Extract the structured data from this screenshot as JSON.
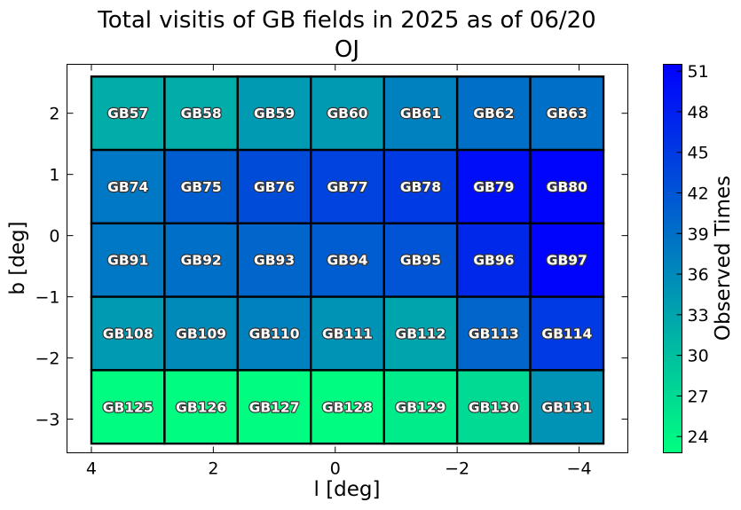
{
  "chart_data": {
    "type": "heatmap",
    "title": [
      "Total visitis of GB fields in 2025 as of 06/20",
      "OJ"
    ],
    "xlabel": "l [deg]",
    "ylabel": "b [deg]",
    "colorbar_label": "Observed Times",
    "x_ticks": [
      4,
      2,
      0,
      -2,
      -4
    ],
    "x_tick_labels": [
      "4",
      "2",
      "0",
      "−2",
      "−4"
    ],
    "y_ticks": [
      2,
      1,
      0,
      -1,
      -2,
      -3
    ],
    "y_tick_labels": [
      "2",
      "1",
      "0",
      "−1",
      "−2",
      "−3"
    ],
    "xlim": [
      4.4,
      -4.8
    ],
    "ylim": [
      -3.55,
      2.8
    ],
    "colorbar_ticks": [
      24,
      27,
      30,
      33,
      36,
      39,
      42,
      45,
      48,
      51
    ],
    "colorbar_range": [
      22.8,
      51.5
    ],
    "colormap": [
      "#00ff80",
      "#0000ff"
    ],
    "grid": false,
    "cells": {
      "l_edges": [
        4.0,
        2.8,
        1.6,
        0.4,
        -0.8,
        -2.0,
        -3.2,
        -4.4
      ],
      "b_edges": [
        2.6,
        1.4,
        0.2,
        -1.0,
        -2.2,
        -3.4
      ],
      "rows": [
        {
          "b": 2,
          "fields": [
            "GB57",
            "GB58",
            "GB59",
            "GB60",
            "GB61",
            "GB62",
            "GB63"
          ],
          "values": [
            32,
            32,
            34,
            34,
            37,
            39,
            39
          ]
        },
        {
          "b": 1,
          "fields": [
            "GB74",
            "GB75",
            "GB76",
            "GB77",
            "GB78",
            "GB79",
            "GB80"
          ],
          "values": [
            38,
            41,
            43,
            44,
            45,
            50,
            51
          ]
        },
        {
          "b": 0,
          "fields": [
            "GB91",
            "GB92",
            "GB93",
            "GB94",
            "GB95",
            "GB96",
            "GB97"
          ],
          "values": [
            38,
            39,
            40,
            41,
            42,
            47,
            51
          ]
        },
        {
          "b": -1,
          "fields": [
            "GB108",
            "GB109",
            "GB110",
            "GB111",
            "GB112",
            "GB113",
            "GB114"
          ],
          "values": [
            34,
            36,
            37,
            35,
            33,
            40,
            45
          ]
        },
        {
          "b": -3,
          "fields": [
            "GB125",
            "GB126",
            "GB127",
            "GB128",
            "GB129",
            "GB130",
            "GB131"
          ],
          "values": [
            23,
            23,
            23,
            23,
            25,
            27,
            35
          ]
        }
      ]
    }
  }
}
